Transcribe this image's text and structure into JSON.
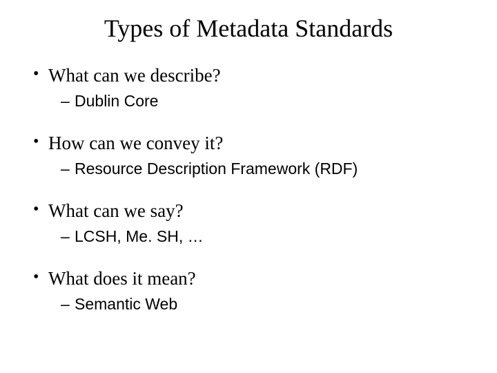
{
  "title": "Types of Metadata Standards",
  "items": [
    {
      "question": "What can we describe?",
      "answer": "Dublin Core"
    },
    {
      "question": "How can we convey it?",
      "answer": "Resource Description Framework (RDF)"
    },
    {
      "question": "What can we say?",
      "answer": "LCSH, Me. SH, …"
    },
    {
      "question": "What does it mean?",
      "answer": "Semantic Web"
    }
  ],
  "colors": {
    "background": "#ffffff",
    "text": "#000000"
  },
  "typography": {
    "title_fontsize": 36,
    "bullet_fontsize": 27,
    "subbullet_fontsize": 23,
    "title_font": "Times New Roman",
    "bullet_font": "Times New Roman",
    "subbullet_font": "Arial"
  }
}
